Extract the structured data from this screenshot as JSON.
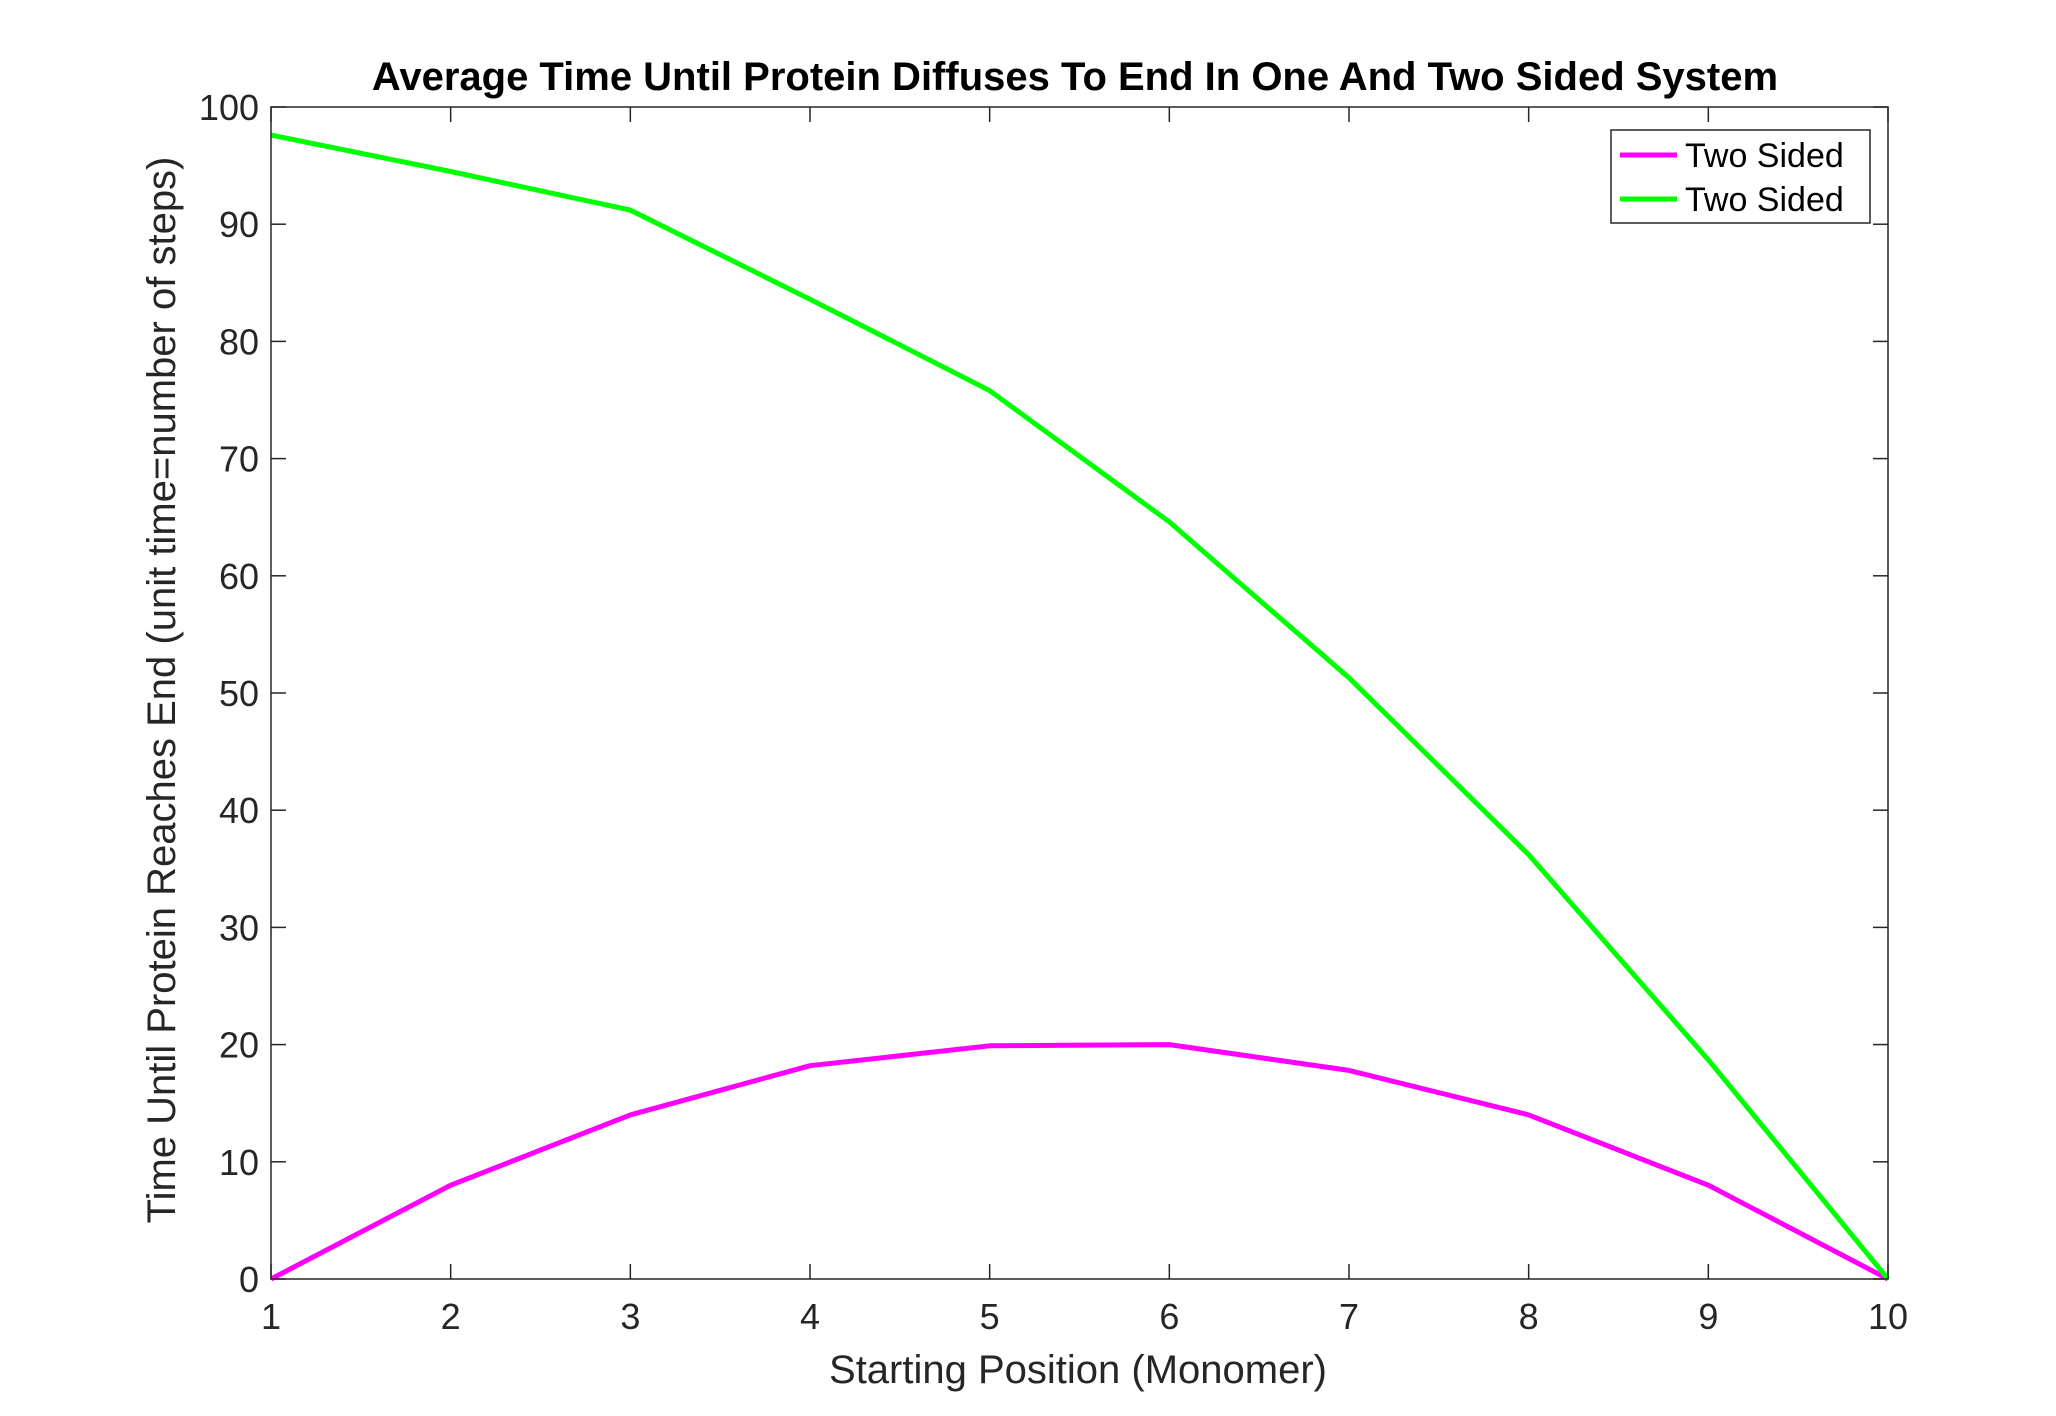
{
  "chart_data": {
    "type": "line",
    "title": "Average Time Until Protein Diffuses To End In One And Two Sided System",
    "xlabel": "Starting Position (Monomer)",
    "ylabel": "Time Until Protein Reaches End (unit time=number of steps)",
    "xlim": [
      1,
      10
    ],
    "ylim": [
      0,
      100
    ],
    "xticks": [
      1,
      2,
      3,
      4,
      5,
      6,
      7,
      8,
      9,
      10
    ],
    "yticks": [
      0,
      10,
      20,
      30,
      40,
      50,
      60,
      70,
      80,
      90,
      100
    ],
    "grid": false,
    "legend_position": "top-right",
    "x": [
      1,
      2,
      3,
      4,
      5,
      6,
      7,
      8,
      9,
      10
    ],
    "series": [
      {
        "name": "Two Sided",
        "color": "#ff00ff",
        "values": [
          0,
          8,
          14,
          18.2,
          19.9,
          20,
          17.8,
          14,
          8,
          0
        ]
      },
      {
        "name": "Two Sided",
        "color": "#00ff00",
        "values": [
          97.6,
          94.5,
          91.2,
          83.6,
          75.8,
          64.6,
          51.3,
          36.2,
          18.7,
          0
        ]
      }
    ]
  }
}
